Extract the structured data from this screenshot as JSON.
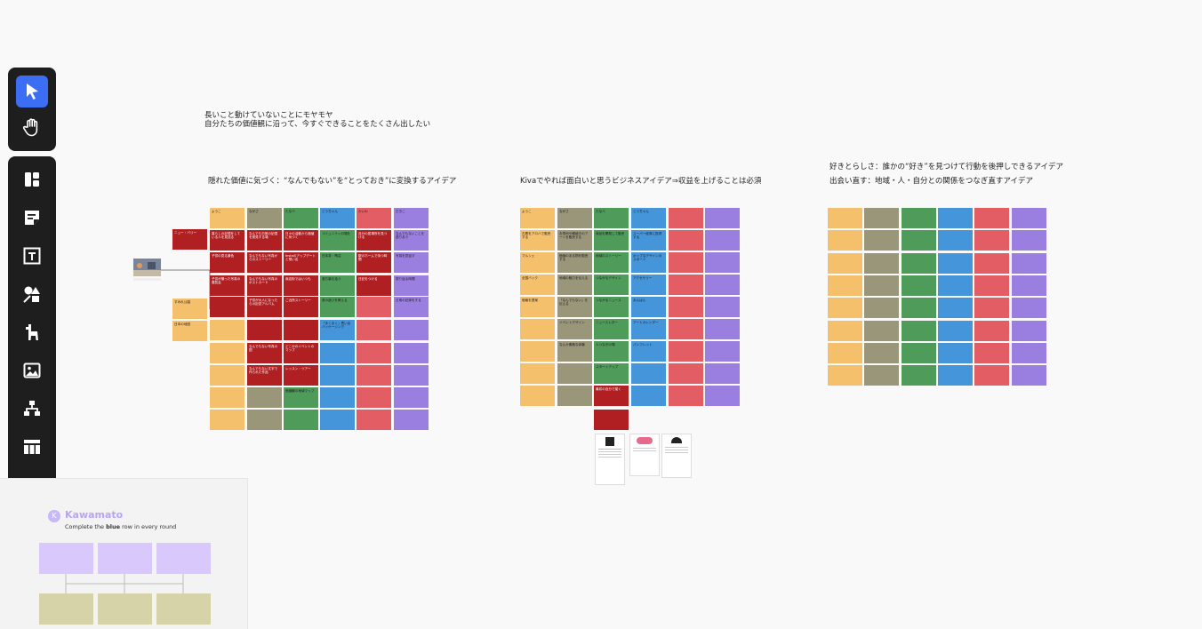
{
  "toolbar": {
    "top_tools": [
      {
        "name": "select-tool",
        "icon": "cursor-arrow-icon",
        "active": true
      },
      {
        "name": "hand-tool",
        "icon": "hand-icon",
        "active": false
      }
    ],
    "main_tools": [
      {
        "name": "templates-tool",
        "icon": "layout-icon"
      },
      {
        "name": "sticky-note-tool",
        "icon": "sticky-note-icon"
      },
      {
        "name": "text-tool",
        "icon": "text-icon"
      },
      {
        "name": "shapes-tool",
        "icon": "shapes-icon"
      },
      {
        "name": "llama-tool",
        "icon": "llama-icon"
      },
      {
        "name": "image-tool",
        "icon": "image-icon"
      },
      {
        "name": "diagram-tool",
        "icon": "diagram-icon"
      },
      {
        "name": "table-tool",
        "icon": "table-icon"
      },
      {
        "name": "pen-tool",
        "icon": "pen-icon"
      },
      {
        "name": "export-tool",
        "icon": "export-icon"
      }
    ]
  },
  "canvas": {
    "intro_line1": "長いこと動けていないことにモヤモヤ",
    "intro_line2": "自分たちの価値観に沿って、今すぐできることをたくさん出したい",
    "section1_title": "隠れた価値に気づく：“なんでもない”を“とっておき”に変換するアイデア",
    "section2_title": "Kivaでやれば面白いと思うビジネスアイデア⇒収益を上げることは必須",
    "section3_title1": "好きとらしさ：誰かの“好き”を見つけて行動を後押しできるアイデア",
    "section3_title2": "出会い直す：地域・人・自分との関係をつなぎ直すアイデア"
  },
  "boards": {
    "b1_headers": [
      "ようこ",
      "ながさ",
      "たなべ",
      "とうちゃん",
      "かいわ",
      "だきこ"
    ],
    "b1_side": [
      "ニュー・バリー",
      "",
      "",
      "すみれ公園",
      "日本の地図"
    ],
    "b1_cells": [
      [
        "暮らしの記憶をしている人を見送る",
        "なんでも日常の記憶を発見する場",
        "日々の活動から価値に気づく",
        "コミュニティの場を",
        "自分の居場所を見つける",
        "なんでもないことを語りあう"
      ],
      [
        "子供の見る景色",
        "なんでもない写真からのストーリー",
        "Instaのアップデートと想い出",
        "日本茶・陶芸",
        "駅のホームで待つ時間",
        "写真を見返す"
      ],
      [
        "子供が撮った写真の展覧会",
        "なんでもない写真のポストカード",
        "商店街ではいつも",
        "落ち葉を拾う",
        "日記をつける",
        "振り返る時間"
      ],
      [
        "",
        "子供が大人になったらの記念アルバム",
        "ご近所ストーリー",
        "昔の遊びを教える",
        "",
        "日常の記録をする"
      ],
      [
        "",
        "",
        "",
        "「まくまく」思い出バッケージング",
        "",
        ""
      ],
      [
        "",
        "なんでもない写真の図",
        "どこかのイベントのマップ",
        "",
        "",
        ""
      ],
      [
        "",
        "なんでもない文字で作られた作品",
        "レッスン・ツアー",
        "",
        "",
        ""
      ],
      [
        "",
        "",
        "価値観の地域マップ",
        "",
        "",
        ""
      ],
      [
        "",
        "",
        "",
        "",
        "",
        ""
      ]
    ],
    "b2_headers": [
      "ようこ",
      "ながさ",
      "たなべ",
      "とうちゃん",
      "",
      ""
    ],
    "b2_side": [
      "古着をアロハで販売",
      "マルシェ",
      "全国バック",
      "価格を提案",
      "",
      "",
      "",
      "",
      ""
    ],
    "b2_cells": [
      [
        "古着をアロハで販売する",
        "お寿司や鯛焼きのアートを販売する",
        "商品を開発して販売",
        "スーパー経済に投資する",
        "",
        ""
      ],
      [
        "マルシェ",
        "価値のある物を販売する",
        "地域のストーリー",
        "ポップなデザインのスポーツ",
        "",
        ""
      ],
      [
        "全国バック",
        "地域の魅力を伝える",
        "つながるデザイン",
        "アクセサリー",
        "",
        ""
      ],
      [
        "価格を提案",
        "「なんでもない」を伝える",
        "つながるニュース",
        "あんばん",
        "",
        ""
      ],
      [
        "",
        "イベントデザイン",
        "ニュースレター",
        "アートカレンダー",
        "",
        ""
      ],
      [
        "",
        "なんか素敵な体験",
        "人つなぎの場",
        "パンフレット",
        "",
        ""
      ],
      [
        "",
        "",
        "スタートアップ",
        "",
        "",
        ""
      ],
      [
        "",
        "",
        "最初の自分で描く",
        "",
        "",
        ""
      ]
    ]
  },
  "panel": {
    "avatar_letter": "K",
    "name": "Kawamato",
    "desc_before": "Complete the ",
    "desc_bold": "blue",
    "desc_after": " row in every round"
  },
  "colors": {
    "orange": "#f5c06c",
    "olive": "#9a967a",
    "green": "#4e9b5a",
    "blue": "#4595da",
    "red": "#e35d64",
    "purple": "#9b7fe0",
    "darkred": "#b01f22",
    "lavender": "#d8c8fb",
    "khaki": "#d6d3a9"
  }
}
